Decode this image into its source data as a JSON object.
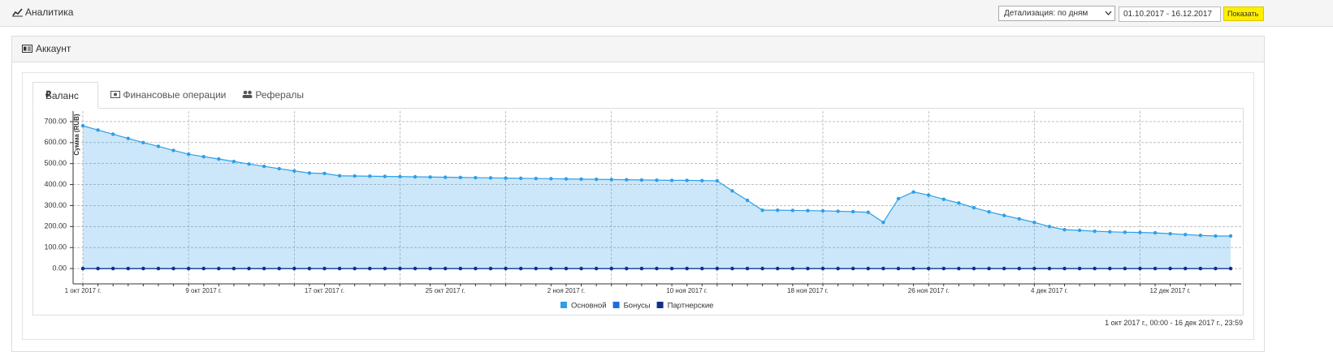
{
  "header": {
    "title": "Аналитика",
    "detail_select": "Детализация: по дням",
    "date_range": "01.10.2017 - 16.12.2017",
    "button": "Показать"
  },
  "panel": {
    "title": "Аккаунт",
    "tabs": [
      "Баланс",
      "Финансовые операции",
      "Рефералы"
    ],
    "range_note": "1 окт 2017 г., 00:00 - 16 дек 2017 г., 23:59"
  },
  "chart_data": {
    "type": "area",
    "y_label": "Сумма (RUB)",
    "categories": [
      "1 окт 2017 г.",
      null,
      null,
      null,
      null,
      null,
      null,
      null,
      "9 окт 2017 г.",
      null,
      null,
      null,
      null,
      null,
      null,
      null,
      "17 окт 2017 г.",
      null,
      null,
      null,
      null,
      null,
      null,
      null,
      "25 окт 2017 г.",
      null,
      null,
      null,
      null,
      null,
      null,
      null,
      "2 ноя 2017 г.",
      null,
      null,
      null,
      null,
      null,
      null,
      null,
      "10 ноя 2017 г.",
      null,
      null,
      null,
      null,
      null,
      null,
      null,
      "18 ноя 2017 г.",
      null,
      null,
      null,
      null,
      null,
      null,
      null,
      "26 ноя 2017 г.",
      null,
      null,
      null,
      null,
      null,
      null,
      null,
      "4 дек 2017 г.",
      null,
      null,
      null,
      null,
      null,
      null,
      null,
      "12 дек 2017 г.",
      null,
      null,
      null,
      null
    ],
    "series": [
      {
        "name": "Основной",
        "color": "#2f9fe6",
        "values": [
          680,
          660,
          640,
          620,
          600,
          582,
          563,
          545,
          533,
          522,
          510,
          498,
          487,
          476,
          465,
          455,
          453,
          442,
          441,
          440,
          439,
          438,
          437,
          436,
          435,
          434,
          433,
          432,
          431,
          430,
          429,
          428,
          427,
          426,
          425,
          424,
          423,
          422,
          421,
          420,
          420,
          419,
          418,
          370,
          325,
          278,
          278,
          277,
          276,
          275,
          273,
          271,
          268,
          220,
          333,
          365,
          350,
          330,
          312,
          290,
          270,
          253,
          237,
          220,
          200,
          185,
          182,
          178,
          175,
          173,
          172,
          170,
          166,
          162,
          158,
          155,
          155
        ]
      },
      {
        "name": "Бонусы",
        "color": "#1a6fe0",
        "values": [
          0,
          0,
          0,
          0,
          0,
          0,
          0,
          0,
          0,
          0,
          0,
          0,
          0,
          0,
          0,
          0,
          0,
          0,
          0,
          0,
          0,
          0,
          0,
          0,
          0,
          0,
          0,
          0,
          0,
          0,
          0,
          0,
          0,
          0,
          0,
          0,
          0,
          0,
          0,
          0,
          0,
          0,
          0,
          0,
          0,
          0,
          0,
          0,
          0,
          0,
          0,
          0,
          0,
          0,
          0,
          0,
          0,
          0,
          0,
          0,
          0,
          0,
          0,
          0,
          0,
          0,
          0,
          0,
          0,
          0,
          0,
          0,
          0,
          0,
          0,
          0,
          0
        ]
      },
      {
        "name": "Партнерские",
        "color": "#12308a",
        "values": [
          0,
          0,
          0,
          0,
          0,
          0,
          0,
          0,
          0,
          0,
          0,
          0,
          0,
          0,
          0,
          0,
          0,
          0,
          0,
          0,
          0,
          0,
          0,
          0,
          0,
          0,
          0,
          0,
          0,
          0,
          0,
          0,
          0,
          0,
          0,
          0,
          0,
          0,
          0,
          0,
          0,
          0,
          0,
          0,
          0,
          0,
          0,
          0,
          0,
          0,
          0,
          0,
          0,
          0,
          0,
          0,
          0,
          0,
          0,
          0,
          0,
          0,
          0,
          0,
          0,
          0,
          0,
          0,
          0,
          0,
          0,
          0,
          0,
          0,
          0,
          0,
          0
        ]
      }
    ],
    "ylim": [
      -73,
      750
    ],
    "yticks": [
      {
        "value": 0,
        "label": "0.00"
      },
      {
        "value": 100,
        "label": "100.00"
      },
      {
        "value": 200,
        "label": "200.00"
      },
      {
        "value": 300,
        "label": "300.00"
      },
      {
        "value": 400,
        "label": "400.00"
      },
      {
        "value": 500,
        "label": "500.00"
      },
      {
        "value": 600,
        "label": "600.00"
      },
      {
        "value": 700,
        "label": "700.00"
      }
    ],
    "grid": true,
    "legend": "bottom"
  }
}
